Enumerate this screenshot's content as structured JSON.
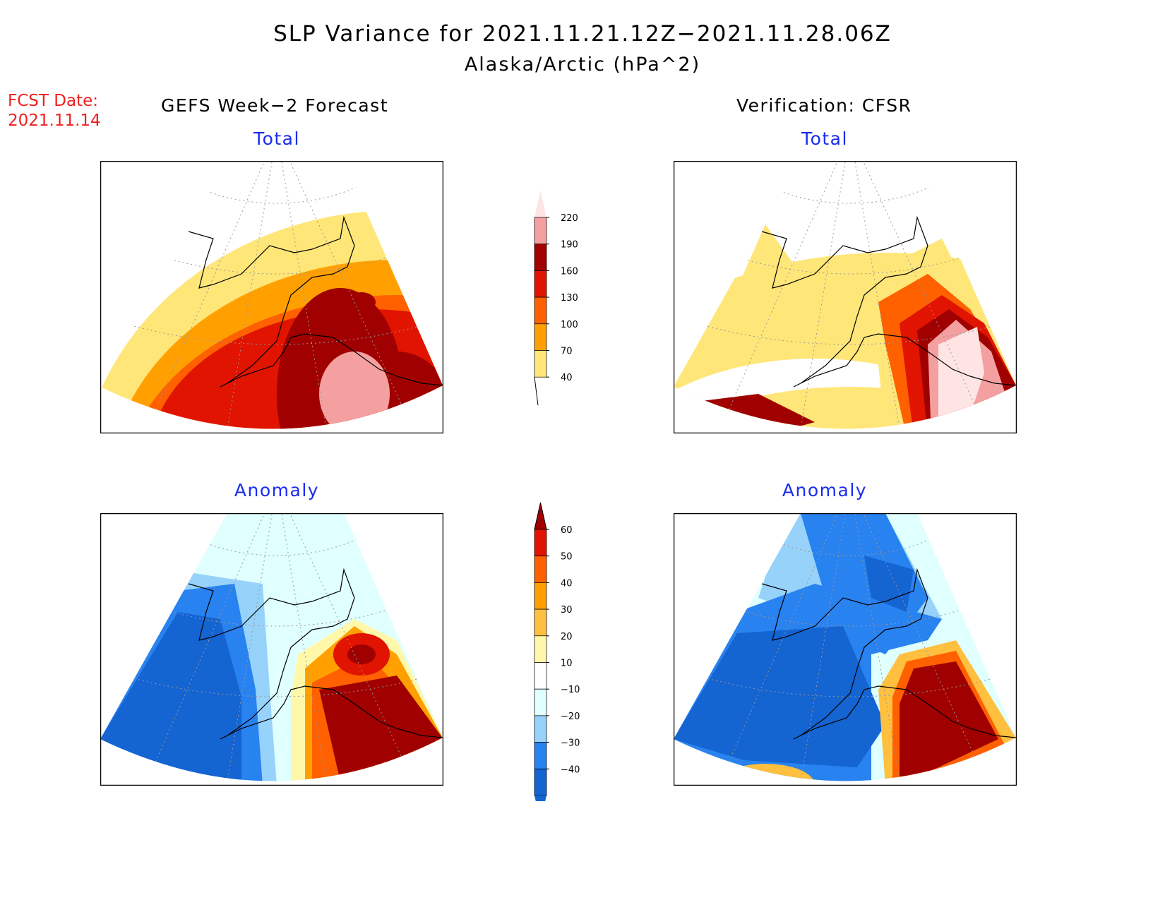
{
  "title": "SLP Variance for 2021.11.21.12Z−2021.11.28.06Z",
  "subtitle": "Alaska/Arctic (hPa^2)",
  "fcst_date_label": "FCST Date:",
  "fcst_date": "2021.11.14",
  "left_column_title": "GEFS Week−2 Forecast",
  "right_column_title": "Verification: CFSR",
  "panels": {
    "tl": {
      "title": "Total"
    },
    "tr": {
      "title": "Total"
    },
    "bl": {
      "title": "Anomaly"
    },
    "br": {
      "title": "Anomaly"
    }
  },
  "colorbar_total": {
    "labels": [
      "220",
      "190",
      "160",
      "130",
      "100",
      "70",
      "40"
    ],
    "colors": [
      "#ffe4e4",
      "#f4a0a0",
      "#a00000",
      "#e01400",
      "#ff6000",
      "#ffa000",
      "#ffe678"
    ]
  },
  "colorbar_anomaly": {
    "labels": [
      "60",
      "50",
      "40",
      "30",
      "20",
      "10",
      "−10",
      "−20",
      "−30",
      "−40"
    ],
    "colors": [
      "#a00000",
      "#e01400",
      "#ff6000",
      "#ffa000",
      "#ffc040",
      "#fff8aa",
      "#ffffff",
      "#e0ffff",
      "#96d2fa",
      "#2882f0",
      "#1464d2"
    ]
  }
}
